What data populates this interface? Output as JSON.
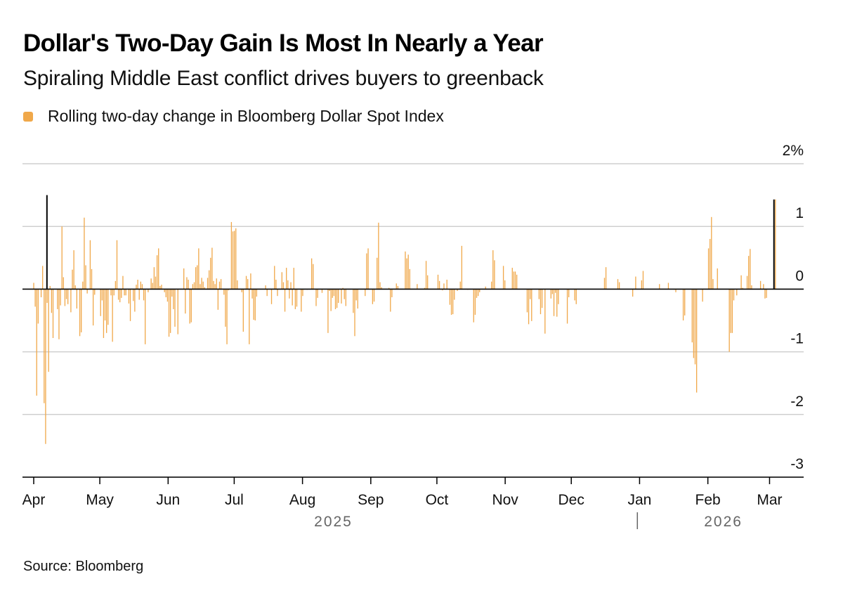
{
  "header": {
    "title": "Dollar's Two-Day Gain Is Most In Nearly a Year",
    "subtitle": "Spiraling Middle East conflict drives buyers to greenback"
  },
  "legend": {
    "label": "Rolling two-day change in Bloomberg Dollar Spot Index",
    "color": "#F0A84A"
  },
  "footer": {
    "source": "Source: Bloomberg"
  },
  "colors": {
    "bar": "#F0A84A",
    "grid": "#CFCFCF",
    "zero_line": "#000000",
    "axis_text": "#111111",
    "year_text": "#666666"
  },
  "chart_data": {
    "type": "bar",
    "title": "Dollar's Two-Day Gain Is Most In Nearly a Year",
    "subtitle": "Spiraling Middle East conflict drives buyers to greenback",
    "series_name": "Rolling two-day change in Bloomberg Dollar Spot Index",
    "unit": "%",
    "ylim": [
      -3,
      2
    ],
    "yticks": [
      {
        "value": 2,
        "label": "2%"
      },
      {
        "value": 1,
        "label": "1"
      },
      {
        "value": 0,
        "label": "0"
      },
      {
        "value": -1,
        "label": "-1"
      },
      {
        "value": -2,
        "label": "-2"
      },
      {
        "value": -3,
        "label": "-3"
      }
    ],
    "grid": true,
    "x_start": "2025-04-01",
    "x_end": "2026-03-05",
    "month_labels": [
      {
        "label": "Apr",
        "date": "2025-04-01"
      },
      {
        "label": "May",
        "date": "2025-05-01"
      },
      {
        "label": "Jun",
        "date": "2025-06-01"
      },
      {
        "label": "Jul",
        "date": "2025-07-01"
      },
      {
        "label": "Aug",
        "date": "2025-08-01"
      },
      {
        "label": "Sep",
        "date": "2025-09-01"
      },
      {
        "label": "Oct",
        "date": "2025-10-01"
      },
      {
        "label": "Nov",
        "date": "2025-11-01"
      },
      {
        "label": "Dec",
        "date": "2025-12-01"
      },
      {
        "label": "Jan",
        "date": "2026-01-01"
      },
      {
        "label": "Feb",
        "date": "2026-02-01"
      },
      {
        "label": "Mar",
        "date": "2026-03-01"
      }
    ],
    "year_labels": [
      {
        "label": "2025",
        "date": "2025-08-15"
      },
      {
        "label": "2026",
        "date": "2026-02-08"
      }
    ],
    "year_divider_date": "2025-12-31",
    "reference_lines": [
      {
        "date": "2025-04-07",
        "value": 1.5
      },
      {
        "date": "2026-03-03",
        "value": 1.43
      }
    ],
    "values": [
      0.1,
      -0.28,
      -1.7,
      -0.55,
      0.0,
      -0.13,
      0.37,
      -1.82,
      -2.47,
      -0.22,
      -1.32,
      0.05,
      -0.38,
      -0.78,
      0.0,
      0.0,
      -0.32,
      -0.8,
      -0.26,
      1.0,
      0.19,
      -0.27,
      -0.16,
      -0.24,
      0.0,
      -0.37,
      0.31,
      0.62,
      0.06,
      -0.31,
      0.0,
      -0.75,
      -0.69,
      0.12,
      1.14,
      0.38,
      -0.07,
      0.0,
      0.78,
      0.32,
      -0.58,
      -0.09,
      0.0,
      0.0,
      0.0,
      -0.43,
      -0.18,
      -0.78,
      -0.5,
      -0.7,
      -0.57,
      0.0,
      -0.1,
      -0.84,
      -0.1,
      0.13,
      0.78,
      -0.17,
      -0.21,
      -0.14,
      0.21,
      -0.1,
      -0.1,
      0.0,
      -0.23,
      -0.51,
      0.0,
      -0.19,
      -0.36,
      0.07,
      0.15,
      -0.17,
      0.12,
      0.08,
      -0.18,
      -0.88,
      0.0,
      -0.05,
      0.0,
      0.17,
      0.1,
      0.35,
      0.2,
      0.54,
      0.65,
      0.05,
      0.07,
      0.0,
      -0.05,
      -0.13,
      -0.2,
      -0.76,
      -0.7,
      -0.12,
      -0.32,
      -0.6,
      0.0,
      -0.72,
      0.0,
      0.0,
      0.0,
      0.33,
      -0.39,
      0.19,
      0.15,
      -0.55,
      -0.53,
      0.08,
      0.11,
      0.35,
      0.38,
      0.65,
      0.08,
      0.18,
      0.12,
      0.03,
      0.0,
      0.18,
      0.3,
      0.5,
      0.66,
      0.13,
      0.08,
      0.17,
      -0.33,
      0.12,
      0.16,
      0.0,
      -0.09,
      -0.6,
      -0.88,
      -0.02,
      0.0,
      1.07,
      0.92,
      0.93,
      0.97,
      0.14,
      0.0,
      0.0,
      -0.05,
      -0.68,
      0.0,
      0.21,
      0.16,
      -0.88,
      0.25,
      -0.15,
      -0.49,
      -0.5,
      -0.12,
      0.0,
      0.0,
      0.0,
      0.0,
      0.0,
      0.06,
      -0.11,
      0.0,
      0.0,
      -0.24,
      0.0,
      0.37,
      0.15,
      -0.11,
      0.0,
      0.0,
      0.27,
      0.11,
      -0.36,
      0.34,
      0.14,
      -0.15,
      0.11,
      -0.26,
      0.34,
      -0.32,
      -0.28,
      0.0,
      0.0,
      -0.36,
      -0.11,
      -0.01,
      0.0,
      -0.01,
      0.0,
      0.0,
      0.49,
      0.4,
      0.0,
      -0.27,
      -0.14,
      0.0,
      0.0,
      -0.06,
      0.0,
      0.0,
      0.0,
      -0.7,
      -0.03,
      -0.35,
      -0.14,
      -0.11,
      -0.32,
      -0.3,
      -0.22,
      0.0,
      -0.23,
      0.02,
      -0.16,
      -0.27,
      0.0,
      0.0,
      0.0,
      0.0,
      -0.38,
      -0.75,
      -0.18,
      -0.31,
      0.0,
      0.0,
      0.0,
      0.0,
      -0.11,
      0.57,
      0.65,
      0.0,
      0.0,
      -0.24,
      -0.2,
      0.0,
      0.5,
      1.06,
      0.11,
      0.03,
      0.0,
      0.0,
      0.0,
      0.0,
      0.02,
      -0.36,
      -0.13,
      0.0,
      0.0,
      0.09,
      0.05,
      0.0,
      0.0,
      0.0,
      0.0,
      0.6,
      0.49,
      0.55,
      0.32,
      0.0,
      0.0,
      0.0,
      0.0,
      0.08,
      0.0,
      0.0,
      0.0,
      0.0,
      0.02,
      0.45,
      0.22,
      0.0,
      0.0,
      0.0,
      0.0,
      0.0,
      0.0,
      0.23,
      0.13,
      0.0,
      -0.02,
      0.09,
      0.0,
      0.15,
      0.0,
      -0.25,
      -0.41,
      -0.4,
      -0.17,
      0.0,
      -0.03,
      0.0,
      0.12,
      0.69,
      0.0,
      0.0,
      0.0,
      -0.01,
      0.0,
      0.0,
      0.0,
      -0.53,
      -0.41,
      -0.14,
      -0.11,
      -0.05,
      0.0,
      0.0,
      0.0,
      0.04,
      0.0,
      0.0,
      0.0,
      0.12,
      0.62,
      0.46,
      0.0,
      0.0,
      0.0,
      0.0,
      0.0,
      0.37,
      0.14,
      0.0,
      0.0,
      0.0,
      0.0,
      0.34,
      0.28,
      0.28,
      0.23,
      0.0,
      0.0,
      0.0,
      0.0,
      0.0,
      0.0,
      -0.37,
      -0.56,
      -0.16,
      -0.51,
      0.0,
      0.0,
      0.0,
      0.0,
      -0.16,
      -0.4,
      -0.3,
      0.0,
      -0.71,
      0.0,
      0.0,
      0.0,
      -0.15,
      -0.08,
      -0.43,
      -0.06,
      -0.44,
      -0.24,
      0.0,
      0.0,
      0.0,
      0.0,
      0.0,
      -0.55,
      -0.13,
      0.0,
      0.0,
      0.0,
      -0.18,
      -0.24,
      0.0,
      0.0,
      0.0,
      0.0,
      0.0,
      0.0,
      0.0,
      0.0,
      0.0,
      0.0,
      0.0,
      0.0,
      0.0,
      0.0,
      0.0,
      0.0,
      0.0,
      0.0,
      0.18,
      0.35,
      0.0,
      0.0,
      0.0,
      0.0,
      0.0,
      0.0,
      0.0,
      0.16,
      0.11,
      0.0,
      0.0,
      0.0,
      0.0,
      0.0,
      0.0,
      0.0,
      0.0,
      -0.12,
      0.0,
      0.2,
      0.0,
      0.0,
      0.0,
      0.14,
      0.29,
      0.0,
      0.0,
      0.0,
      0.0,
      0.0,
      0.0,
      0.0,
      0.0,
      0.0,
      0.0,
      0.08,
      0.0,
      0.0,
      0.0,
      0.0,
      0.0,
      0.1,
      0.0,
      0.0,
      0.0,
      -0.01,
      -0.05,
      0.0,
      0.0,
      0.0,
      0.0,
      -0.5,
      -0.42,
      0.0,
      0.0,
      0.0,
      0.0,
      -0.85,
      -1.1,
      -1.2,
      -1.65,
      0.0,
      0.0,
      0.0,
      -0.2,
      0.0,
      0.0,
      0.0,
      0.65,
      0.8,
      1.15,
      0.16,
      0.0,
      0.0,
      0.33,
      0.0,
      0.0,
      0.0,
      0.0,
      0.0,
      0.0,
      0.0,
      -1.0,
      -0.7,
      -0.7,
      -0.18,
      0.0,
      -0.1,
      0.0,
      0.0,
      0.22,
      0.02,
      0.0,
      0.0,
      0.21,
      0.53,
      0.64,
      0.06,
      0.0,
      0.0,
      0.0,
      0.0,
      0.0,
      0.13,
      0.0,
      0.08,
      -0.15,
      -0.14,
      0.0,
      0.0,
      0.0,
      0.0,
      0.68,
      1.43,
      0.0,
      0.0
    ]
  }
}
